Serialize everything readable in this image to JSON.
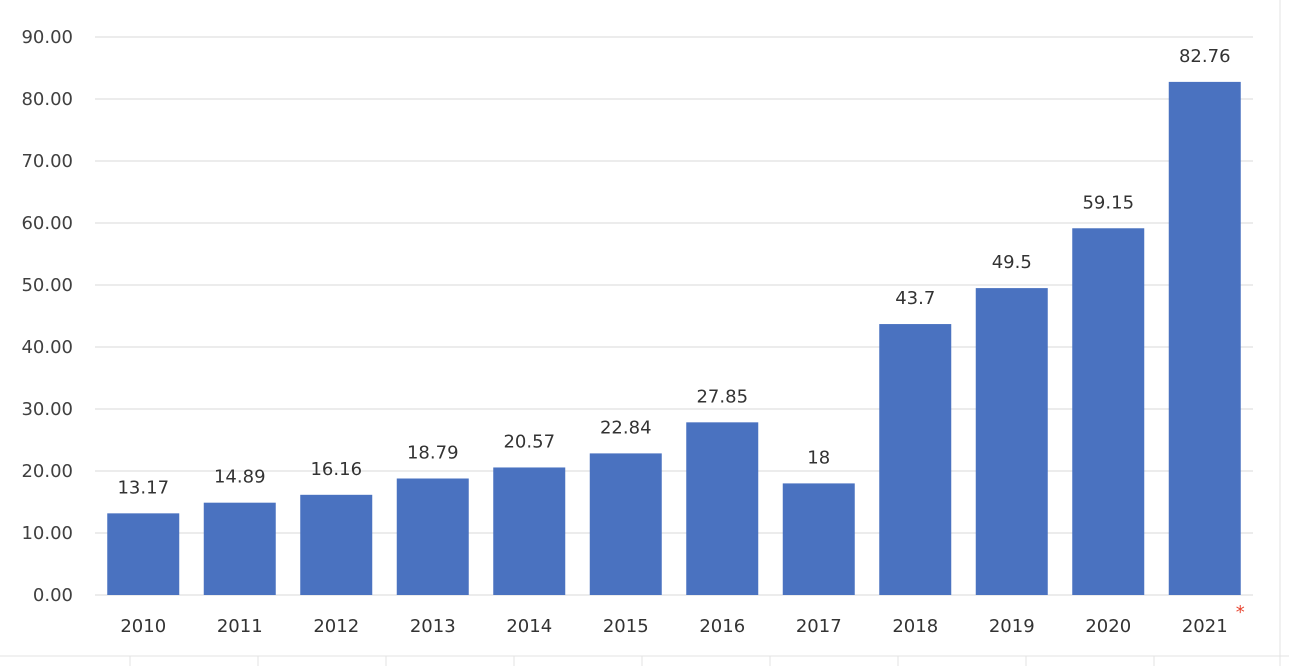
{
  "chart_data": {
    "type": "bar",
    "title": "",
    "xlabel": "",
    "ylabel": "",
    "ylim": [
      0,
      90
    ],
    "yticks": [
      "0.00",
      "10.00",
      "20.00",
      "30.00",
      "40.00",
      "50.00",
      "60.00",
      "70.00",
      "80.00",
      "90.00"
    ],
    "categories": [
      "2010",
      "2011",
      "2012",
      "2013",
      "2014",
      "2015",
      "2016",
      "2017",
      "2018",
      "2019",
      "2020",
      "2021"
    ],
    "values": [
      13.17,
      14.89,
      16.16,
      18.79,
      20.57,
      22.84,
      27.85,
      18,
      43.7,
      49.5,
      59.15,
      82.76
    ],
    "data_labels": [
      "13.17",
      "14.89",
      "16.16",
      "18.79",
      "20.57",
      "22.84",
      "27.85",
      "18",
      "43.7",
      "49.5",
      "59.15",
      "82.76"
    ],
    "annotation": {
      "category": "2021",
      "text": "*",
      "color": "#e8442f"
    },
    "grid": true,
    "bar_color": "#4a72c0",
    "grid_color": "#d9d9d9"
  }
}
